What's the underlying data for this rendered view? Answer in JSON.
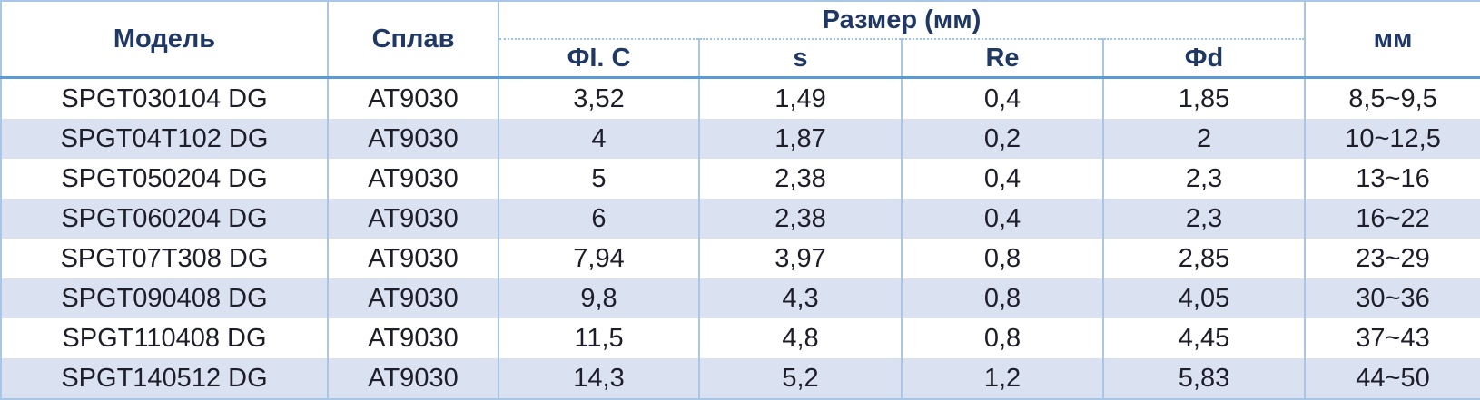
{
  "table": {
    "header": {
      "model": "Модель",
      "alloy": "Сплав",
      "size": "Размер (мм)",
      "size_columns": [
        "ФI. C",
        "s",
        "Re",
        "Фd"
      ],
      "range": "мм"
    },
    "rows": [
      [
        "SPGT030104 DG",
        "AT9030",
        "3,52",
        "1,49",
        "0,4",
        "1,85",
        "8,5~9,5"
      ],
      [
        "SPGT04T102 DG",
        "AT9030",
        "4",
        "1,87",
        "0,2",
        "2",
        "10~12,5"
      ],
      [
        "SPGT050204 DG",
        "AT9030",
        "5",
        "2,38",
        "0,4",
        "2,3",
        "13~16"
      ],
      [
        "SPGT060204 DG",
        "AT9030",
        "6",
        "2,38",
        "0,4",
        "2,3",
        "16~22"
      ],
      [
        "SPGT07T308 DG",
        "AT9030",
        "7,94",
        "3,97",
        "0,8",
        "2,85",
        "23~29"
      ],
      [
        "SPGT090408 DG",
        "AT9030",
        "9,8",
        "4,3",
        "0,8",
        "4,05",
        "30~36"
      ],
      [
        "SPGT110408 DG",
        "AT9030",
        "11,5",
        "4,8",
        "0,8",
        "4,45",
        "37~43"
      ],
      [
        "SPGT140512 DG",
        "AT9030",
        "14,3",
        "5,2",
        "1,2",
        "5,83",
        "44~50"
      ]
    ]
  }
}
